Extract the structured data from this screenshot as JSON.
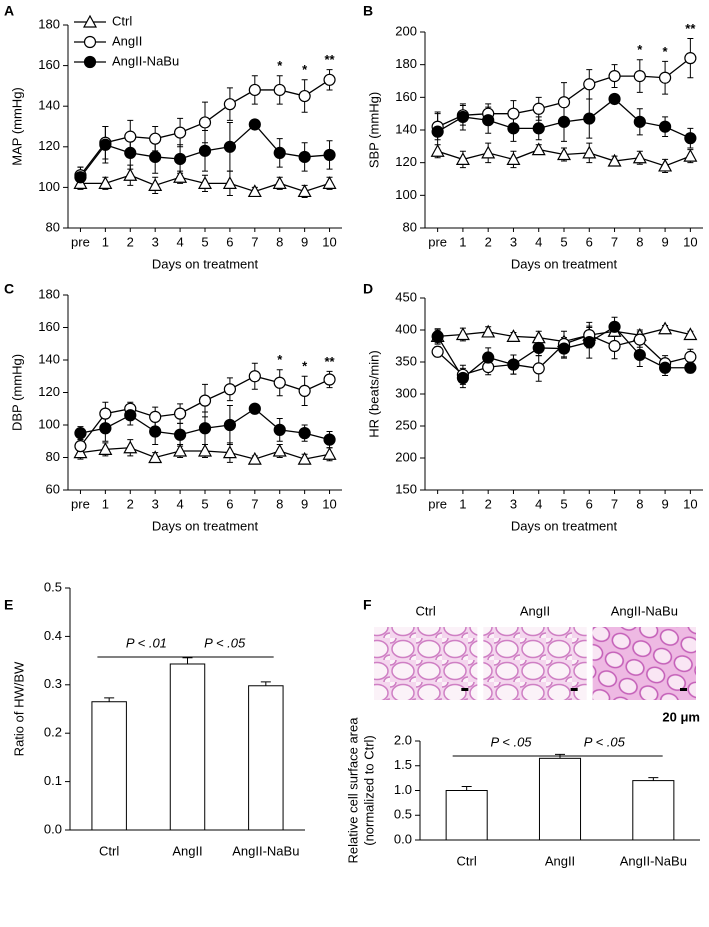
{
  "chart_data": [
    {
      "type": "line",
      "panel": "A",
      "ylabel": "MAP (mmHg)",
      "xlabel": "Days on treatment",
      "legend": "upper left",
      "categories": [
        "pre",
        "1",
        "2",
        "3",
        "4",
        "5",
        "6",
        "7",
        "8",
        "9",
        "10"
      ],
      "ylim": [
        80,
        180
      ],
      "yticks": [
        80,
        100,
        120,
        140,
        160,
        180
      ],
      "significance": [
        null,
        null,
        null,
        null,
        null,
        null,
        null,
        null,
        "*",
        "*",
        "**"
      ],
      "series": [
        {
          "name": "Ctrl",
          "color": "#000000",
          "marker": "triangle",
          "fill": "#ffffff",
          "values": [
            102,
            102,
            106,
            101,
            105,
            102,
            102,
            98,
            102,
            98,
            102
          ],
          "errors": [
            3,
            3,
            5,
            4,
            3,
            4,
            6,
            2,
            3,
            3,
            3
          ]
        },
        {
          "name": "AngII",
          "color": "#000000",
          "marker": "circle",
          "fill": "#ffffff",
          "values": [
            106,
            122,
            125,
            124,
            127,
            132,
            141,
            148,
            148,
            145,
            153
          ],
          "errors": [
            4,
            8,
            8,
            6,
            7,
            10,
            8,
            7,
            7,
            8,
            5
          ]
        },
        {
          "name": "AngII-NaBu",
          "color": "#000000",
          "marker": "circle",
          "fill": "#000000",
          "values": [
            105,
            121,
            117,
            115,
            114,
            118,
            120,
            131,
            117,
            115,
            116
          ],
          "errors": [
            5,
            9,
            8,
            8,
            7,
            10,
            12,
            2,
            7,
            7,
            7
          ]
        }
      ]
    },
    {
      "type": "line",
      "panel": "B",
      "ylabel": "SBP (mmHg)",
      "xlabel": "Days on treatment",
      "categories": [
        "pre",
        "1",
        "2",
        "3",
        "4",
        "5",
        "6",
        "7",
        "8",
        "9",
        "10"
      ],
      "ylim": [
        80,
        200
      ],
      "yticks": [
        80,
        100,
        120,
        140,
        160,
        180,
        200
      ],
      "significance": [
        null,
        null,
        null,
        null,
        null,
        null,
        null,
        null,
        "*",
        "*",
        "**"
      ],
      "series": [
        {
          "color": "#000000",
          "marker": "triangle",
          "fill": "#ffffff",
          "values": [
            127,
            122,
            126,
            122,
            128,
            125,
            126,
            121,
            123,
            118,
            124
          ],
          "errors": [
            4,
            5,
            6,
            5,
            3,
            4,
            6,
            3,
            4,
            4,
            4
          ]
        },
        {
          "color": "#000000",
          "marker": "circle",
          "fill": "#ffffff",
          "values": [
            142,
            149,
            150,
            150,
            153,
            157,
            168,
            173,
            173,
            172,
            184
          ],
          "errors": [
            8,
            6,
            6,
            8,
            7,
            12,
            9,
            7,
            10,
            10,
            12
          ]
        },
        {
          "color": "#000000",
          "marker": "circle",
          "fill": "#000000",
          "values": [
            139,
            148,
            146,
            141,
            141,
            145,
            147,
            159,
            145,
            142,
            135
          ],
          "errors": [
            12,
            8,
            8,
            8,
            7,
            12,
            12,
            2,
            8,
            6,
            6
          ]
        }
      ]
    },
    {
      "type": "line",
      "panel": "C",
      "ylabel": "DBP (mmHg)",
      "xlabel": "Days on treatment",
      "categories": [
        "pre",
        "1",
        "2",
        "3",
        "4",
        "5",
        "6",
        "7",
        "8",
        "9",
        "10"
      ],
      "ylim": [
        60,
        180
      ],
      "yticks": [
        60,
        80,
        100,
        120,
        140,
        160,
        180
      ],
      "significance": [
        null,
        null,
        null,
        null,
        null,
        null,
        null,
        null,
        "*",
        "*",
        "**"
      ],
      "series": [
        {
          "color": "#000000",
          "marker": "triangle",
          "fill": "#ffffff",
          "values": [
            83,
            85,
            86,
            80,
            84,
            84,
            83,
            79,
            84,
            79,
            82
          ],
          "errors": [
            4,
            4,
            5,
            3,
            4,
            4,
            6,
            2,
            4,
            3,
            4
          ]
        },
        {
          "color": "#000000",
          "marker": "circle",
          "fill": "#ffffff",
          "values": [
            87,
            107,
            110,
            105,
            107,
            115,
            122,
            130,
            126,
            121,
            128
          ],
          "errors": [
            4,
            7,
            4,
            6,
            6,
            10,
            7,
            8,
            8,
            9,
            5
          ]
        },
        {
          "color": "#000000",
          "marker": "circle",
          "fill": "#000000",
          "values": [
            95,
            98,
            106,
            96,
            94,
            98,
            100,
            110,
            97,
            95,
            91
          ],
          "errors": [
            4,
            8,
            6,
            8,
            7,
            10,
            12,
            2,
            7,
            5,
            5
          ]
        }
      ]
    },
    {
      "type": "line",
      "panel": "D",
      "ylabel": "HR (beats/min)",
      "xlabel": "Days on treatment",
      "categories": [
        "pre",
        "1",
        "2",
        "3",
        "4",
        "5",
        "6",
        "7",
        "8",
        "9",
        "10"
      ],
      "ylim": [
        150,
        450
      ],
      "yticks": [
        150,
        200,
        250,
        300,
        350,
        400,
        450
      ],
      "series": [
        {
          "color": "#000000",
          "marker": "triangle",
          "fill": "#ffffff",
          "values": [
            390,
            393,
            397,
            390,
            388,
            382,
            392,
            398,
            392,
            402,
            393
          ],
          "errors": [
            10,
            10,
            8,
            6,
            10,
            6,
            12,
            8,
            8,
            5,
            5
          ]
        },
        {
          "color": "#000000",
          "marker": "circle",
          "fill": "#ffffff",
          "values": [
            366,
            330,
            342,
            346,
            340,
            378,
            392,
            375,
            385,
            348,
            358
          ],
          "errors": [
            8,
            15,
            12,
            15,
            20,
            20,
            20,
            20,
            12,
            12,
            12
          ]
        },
        {
          "color": "#000000",
          "marker": "circle",
          "fill": "#000000",
          "values": [
            390,
            325,
            357,
            346,
            372,
            371,
            381,
            405,
            361,
            341,
            341
          ],
          "errors": [
            12,
            15,
            15,
            15,
            12,
            15,
            25,
            15,
            18,
            12,
            8
          ]
        }
      ]
    },
    {
      "type": "bar",
      "panel": "E",
      "ylabel": [
        "Ratio of HW/BW"
      ],
      "categories": [
        "Ctrl",
        "AngII",
        "AngII-NaBu"
      ],
      "values": [
        0.265,
        0.343,
        0.298
      ],
      "errors": [
        0.008,
        0.013,
        0.008
      ],
      "color": "#ffffff",
      "ylim": [
        0,
        0.5
      ],
      "yticks": [
        {
          "value": 0,
          "label": "0.0"
        },
        0.1,
        0.2,
        0.3,
        0.4,
        0.5
      ],
      "comparisons": [
        {
          "pair": [
            "Ctrl",
            "AngII"
          ],
          "label": "P < .01"
        },
        {
          "pair": [
            "AngII",
            "AngII-NaBu"
          ],
          "label": "P < .05"
        }
      ]
    },
    {
      "type": "bar",
      "panel": "F",
      "ylabel": [
        "Relative cell surface area",
        "(normalized to Ctrl)"
      ],
      "images": [
        {
          "label": "Ctrl"
        },
        {
          "label": "AngII"
        },
        {
          "label": "AngII-NaBu"
        }
      ],
      "scale_bar": "20 μm",
      "categories": [
        "Ctrl",
        "AngII",
        "AngII-NaBu"
      ],
      "values": [
        1.0,
        1.65,
        1.2
      ],
      "errors": [
        0.08,
        0.08,
        0.06
      ],
      "color": "#ffffff",
      "ylim": [
        0,
        2
      ],
      "yticks": [
        {
          "value": 0,
          "label": "0.0"
        },
        0.5,
        {
          "value": 1,
          "label": "1.0"
        },
        1.5,
        {
          "value": 2,
          "label": "2.0"
        }
      ],
      "comparisons": [
        {
          "pair": [
            "Ctrl",
            "AngII"
          ],
          "label": "P < .05"
        },
        {
          "pair": [
            "AngII",
            "AngII-NaBu"
          ],
          "label": "P < .05"
        }
      ]
    }
  ]
}
